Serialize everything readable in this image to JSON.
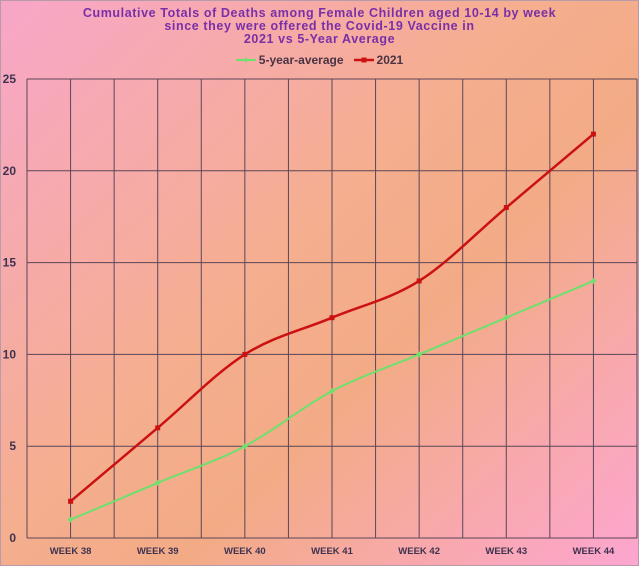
{
  "chart_data": {
    "type": "line",
    "title_lines": [
      "Cumulative Totals of Deaths among Female Children aged 10-14 by week",
      "since they were offered the Covid-19 Vaccine in",
      "2021 vs 5-Year Average"
    ],
    "categories": [
      "WEEK 38",
      "WEEK 39",
      "WEEK 40",
      "WEEK 41",
      "WEEK 42",
      "WEEK 43",
      "WEEK 44"
    ],
    "series": [
      {
        "name": "5-year-average",
        "values": [
          1,
          3,
          5,
          8,
          10,
          12,
          14
        ],
        "color": "#6ee06e"
      },
      {
        "name": "2021",
        "values": [
          2,
          6,
          10,
          12,
          14,
          18,
          22
        ],
        "color": "#cc1111"
      }
    ],
    "ylim": [
      0,
      25
    ],
    "yticks": [
      0,
      5,
      10,
      15,
      20,
      25
    ],
    "grid": true,
    "legend_position": "top-center",
    "colors": {
      "title": "#7a2fa8",
      "grid": "#5a4658",
      "axis_text": "#3d3350"
    }
  }
}
